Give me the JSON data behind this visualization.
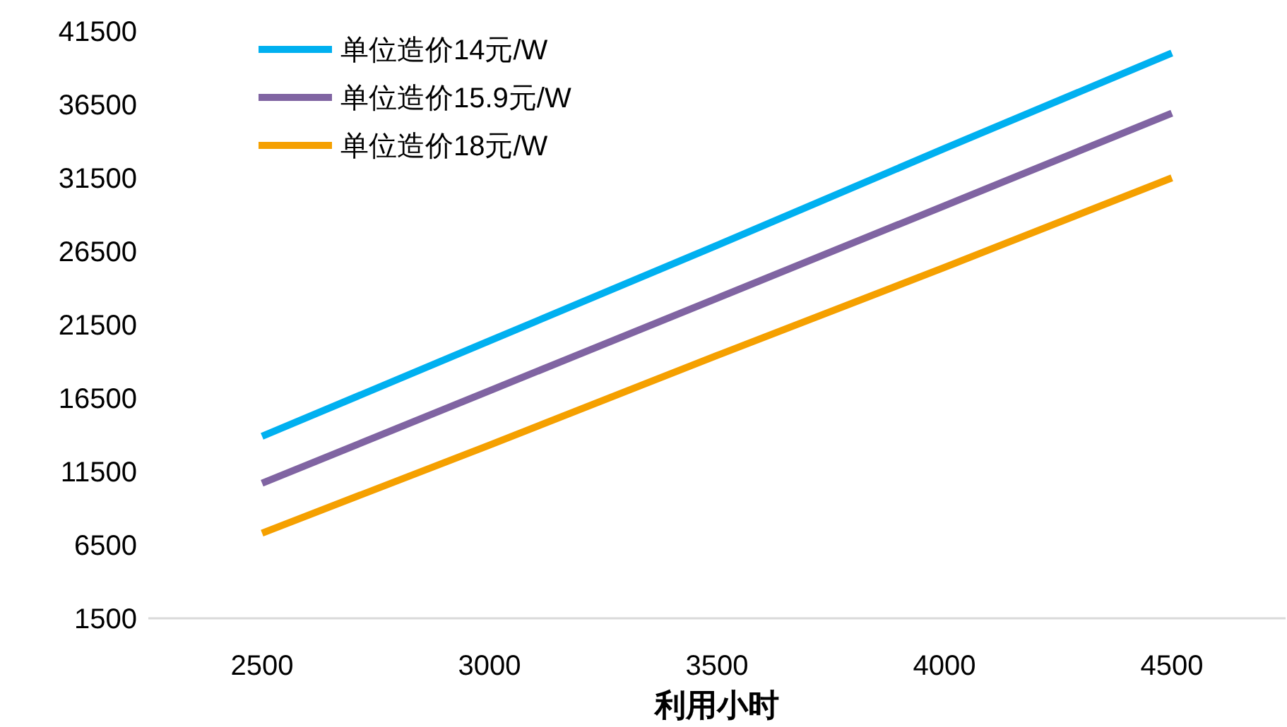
{
  "chart_data": {
    "type": "line",
    "xlabel": "利用小时",
    "categories": [
      "2500",
      "3000",
      "3500",
      "4000",
      "4500"
    ],
    "ylim": [
      1500,
      41500
    ],
    "yticks": [
      1500,
      6500,
      11500,
      16500,
      21500,
      26500,
      31500,
      36500,
      41500
    ],
    "grid": false,
    "legend": "top left",
    "marker": "none",
    "line_style": "solid",
    "series": [
      {
        "name": "单位造价14元/W",
        "color": "#00b0f0",
        "values": [
          13900,
          20400,
          26900,
          33500,
          40000
        ]
      },
      {
        "name": "单位造价15.9元/W",
        "color": "#8064a2",
        "values": [
          10700,
          17000,
          23300,
          29600,
          35900
        ]
      },
      {
        "name": "单位造价18元/W",
        "color": "#f5a000",
        "values": [
          7300,
          13300,
          19400,
          25400,
          31500
        ]
      }
    ]
  }
}
